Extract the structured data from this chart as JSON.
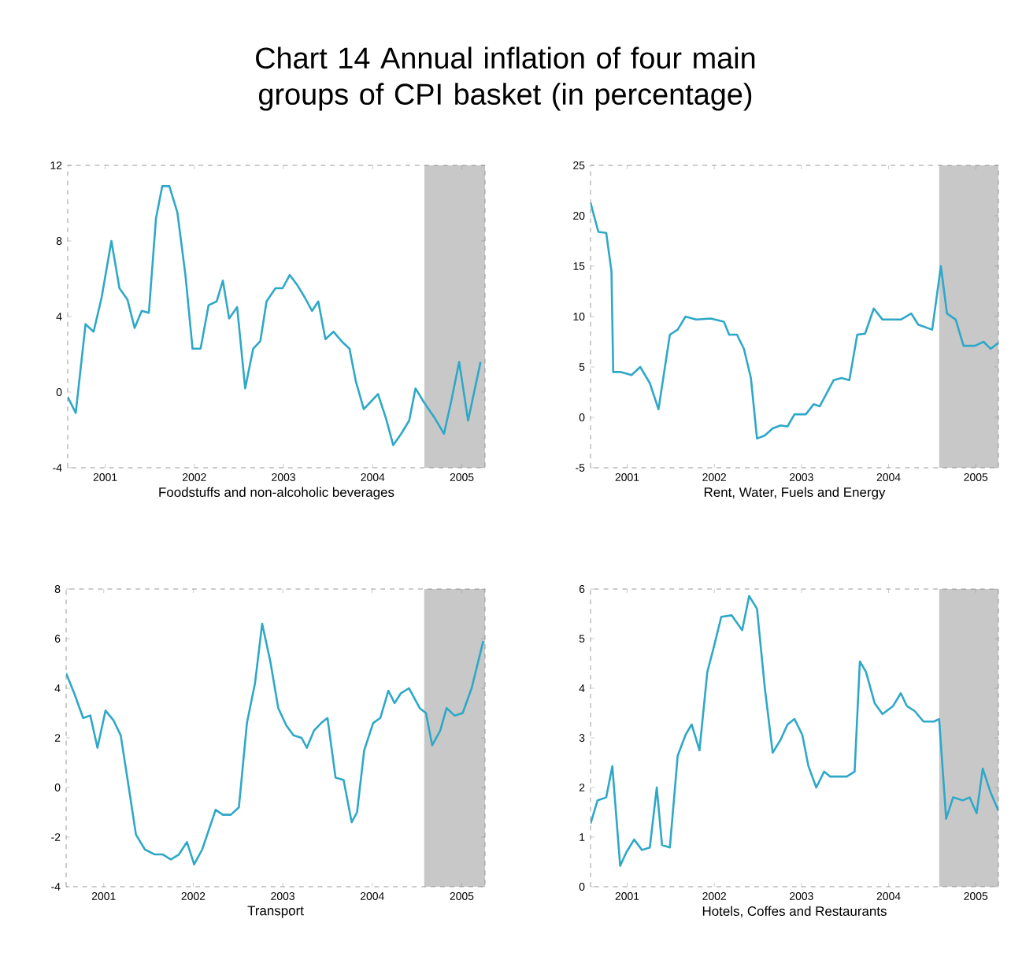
{
  "chart_data": [
    {
      "type": "line",
      "title": "Chart 14 Annual inflation of four main groups of CPI basket (in percentage)",
      "xlabel": "Foodstuffs and non-alcoholic beverages",
      "color": "#2ea8c8",
      "x": [
        2001.08,
        2001.17,
        2001.28,
        2001.37,
        2001.46,
        2001.57,
        2001.66,
        2001.75,
        2001.83,
        2001.91,
        2001.99,
        2002.07,
        2002.14,
        2002.22,
        2002.31,
        2002.4,
        2002.48,
        2002.57,
        2002.66,
        2002.75,
        2002.82,
        2002.89,
        2002.98,
        2003.07,
        2003.16,
        2003.24,
        2003.31,
        2003.41,
        2003.49,
        2003.57,
        2003.65,
        2003.74,
        2003.82,
        2003.89,
        2003.97,
        2004.06,
        2004.15,
        2004.24,
        2004.31,
        2004.4,
        2004.48,
        2004.56,
        2004.65,
        2004.73,
        2004.82,
        2004.91,
        2004.98,
        2005.07,
        2005.2,
        2005.3,
        2005.38,
        2005.47,
        2005.57,
        2005.71
      ],
      "values": [
        -0.25,
        -1.1,
        3.6,
        3.2,
        5.0,
        8.0,
        5.5,
        4.9,
        3.4,
        4.3,
        4.2,
        9.2,
        10.9,
        10.9,
        9.5,
        6.2,
        2.3,
        2.3,
        4.6,
        4.8,
        5.9,
        3.9,
        4.5,
        0.2,
        2.3,
        2.7,
        4.8,
        5.5,
        5.5,
        6.2,
        5.7,
        5.0,
        4.3,
        4.8,
        2.8,
        3.2,
        2.7,
        2.3,
        0.6,
        -0.9,
        -0.5,
        -0.1,
        -1.4,
        -2.8,
        -2.2,
        -1.5,
        0.2,
        -0.5,
        -1.4,
        -2.2,
        -0.5,
        1.6,
        -1.5,
        1.6
      ],
      "xlim": [
        2001.08,
        2005.76
      ],
      "ylim": [
        -4,
        12
      ],
      "xticks": [
        {
          "value": 2001.5,
          "label": "2001"
        },
        {
          "value": 2002.5,
          "label": "2002"
        },
        {
          "value": 2003.5,
          "label": "2003"
        },
        {
          "value": 2004.5,
          "label": "2004"
        },
        {
          "value": 2005.5,
          "label": "2005"
        }
      ],
      "yticks": [
        -4,
        0,
        4,
        8,
        12
      ],
      "bands": [
        {
          "axis": "x",
          "from": 2005.08,
          "to": 2005.76,
          "color": "#c8c8c8"
        }
      ]
    },
    {
      "type": "line",
      "xlabel": "Rent, Water, Fuels and Energy",
      "color": "#2ea8c8",
      "x": [
        2001.08,
        2001.12,
        2001.17,
        2001.26,
        2001.32,
        2001.34,
        2001.43,
        2001.55,
        2001.65,
        2001.76,
        2001.86,
        2001.99,
        2002.08,
        2002.17,
        2002.29,
        2002.46,
        2002.61,
        2002.67,
        2002.76,
        2002.84,
        2002.92,
        2002.99,
        2003.08,
        2003.17,
        2003.26,
        2003.34,
        2003.42,
        2003.55,
        2003.64,
        2003.71,
        2003.79,
        2003.87,
        2003.96,
        2004.05,
        2004.14,
        2004.23,
        2004.33,
        2004.43,
        2004.64,
        2004.76,
        2004.84,
        2005.0,
        2005.1,
        2005.17,
        2005.27,
        2005.36,
        2005.49,
        2005.59,
        2005.67,
        2005.76
      ],
      "values": [
        21.3,
        20,
        18.4,
        18.3,
        14.5,
        4.5,
        4.5,
        4.2,
        5.0,
        3.4,
        0.8,
        8.2,
        8.7,
        10,
        9.7,
        9.8,
        9.5,
        8.2,
        8.2,
        6.8,
        3.9,
        -2.1,
        -1.8,
        -1.1,
        -0.8,
        -0.9,
        0.3,
        0.3,
        1.3,
        1.1,
        2.4,
        3.7,
        3.9,
        3.7,
        8.2,
        8.3,
        10.8,
        9.7,
        9.7,
        10.3,
        9.2,
        8.7,
        15,
        10.3,
        9.7,
        7.1,
        7.1,
        7.5,
        6.8,
        7.4
      ],
      "xlim": [
        2001.08,
        2005.76
      ],
      "ylim": [
        -5,
        25
      ],
      "xticks": [
        {
          "value": 2001.5,
          "label": "2001"
        },
        {
          "value": 2002.5,
          "label": "2002"
        },
        {
          "value": 2003.5,
          "label": "2003"
        },
        {
          "value": 2004.5,
          "label": "2004"
        },
        {
          "value": 2005.5,
          "label": "2005"
        }
      ],
      "yticks": [
        -5,
        0,
        5,
        10,
        15,
        20,
        25
      ],
      "bands": [
        {
          "axis": "x",
          "from": 2005.08,
          "to": 2005.76,
          "color": "#c8c8c8"
        }
      ]
    },
    {
      "type": "line",
      "xlabel": "Transport",
      "color": "#2ea8c8",
      "x": [
        2001.08,
        2001.17,
        2001.27,
        2001.35,
        2001.43,
        2001.52,
        2001.61,
        2001.69,
        2001.78,
        2001.86,
        2001.96,
        2002.07,
        2002.16,
        2002.25,
        2002.34,
        2002.43,
        2002.51,
        2002.6,
        2002.75,
        2002.83,
        2002.92,
        2003.01,
        2003.1,
        2003.19,
        2003.27,
        2003.36,
        2003.45,
        2003.54,
        2003.62,
        2003.71,
        2003.77,
        2003.85,
        2003.93,
        2004.0,
        2004.09,
        2004.18,
        2004.27,
        2004.33,
        2004.41,
        2004.51,
        2004.59,
        2004.68,
        2004.75,
        2004.82,
        2004.91,
        2005.03,
        2005.1,
        2005.17,
        2005.26,
        2005.33,
        2005.42,
        2005.51,
        2005.61,
        2005.74
      ],
      "values": [
        4.6,
        3.8,
        2.8,
        2.9,
        1.6,
        3.1,
        2.7,
        2.1,
        0,
        -1.9,
        -2.5,
        -2.7,
        -2.7,
        -2.9,
        -2.7,
        -2.2,
        -3.1,
        -2.5,
        -0.9,
        -1.1,
        -1.1,
        -0.8,
        2.6,
        4.2,
        6.6,
        5.1,
        3.2,
        2.5,
        2.1,
        2.0,
        1.6,
        2.3,
        2.6,
        2.8,
        0.4,
        0.3,
        -1.4,
        -1.0,
        1.5,
        2.6,
        2.8,
        3.9,
        3.4,
        3.8,
        4.0,
        3.2,
        3.0,
        1.7,
        2.3,
        3.2,
        2.9,
        3.0,
        4.0,
        5.9
      ],
      "xlim": [
        2001.08,
        2005.76
      ],
      "ylim": [
        -4,
        8
      ],
      "xticks": [
        {
          "value": 2001.5,
          "label": "2001"
        },
        {
          "value": 2002.5,
          "label": "2002"
        },
        {
          "value": 2003.5,
          "label": "2003"
        },
        {
          "value": 2004.5,
          "label": "2004"
        },
        {
          "value": 2005.5,
          "label": "2005"
        }
      ],
      "yticks": [
        -4,
        -2,
        0,
        2,
        4,
        6,
        8
      ],
      "bands": [
        {
          "axis": "x",
          "from": 2005.08,
          "to": 2005.76,
          "color": "#c8c8c8"
        }
      ]
    },
    {
      "type": "line",
      "xlabel": "Hotels, Coffes and Restaurants",
      "color": "#2ea8c8",
      "x": [
        2001.08,
        2001.16,
        2001.26,
        2001.33,
        2001.42,
        2001.49,
        2001.58,
        2001.67,
        2001.76,
        2001.84,
        2001.9,
        2001.99,
        2002.08,
        2002.17,
        2002.24,
        2002.33,
        2002.42,
        2002.49,
        2002.58,
        2002.7,
        2002.82,
        2002.9,
        2002.99,
        2003.08,
        2003.17,
        2003.26,
        2003.34,
        2003.42,
        2003.51,
        2003.58,
        2003.67,
        2003.76,
        2003.83,
        2004.02,
        2004.11,
        2004.17,
        2004.24,
        2004.34,
        2004.43,
        2004.55,
        2004.64,
        2004.71,
        2004.8,
        2004.9,
        2005.02,
        2005.08,
        2005.16,
        2005.24,
        2005.35,
        2005.43,
        2005.51,
        2005.58,
        2005.67,
        2005.76
      ],
      "values": [
        1.27,
        1.74,
        1.8,
        2.43,
        0.42,
        0.69,
        0.95,
        0.74,
        0.79,
        2.0,
        0.84,
        0.79,
        2.64,
        3.06,
        3.27,
        2.75,
        4.33,
        4.8,
        5.44,
        5.47,
        5.17,
        5.86,
        5.6,
        4.0,
        2.7,
        2.96,
        3.27,
        3.38,
        3.06,
        2.43,
        2.0,
        2.32,
        2.22,
        2.22,
        2.32,
        4.54,
        4.33,
        3.7,
        3.48,
        3.64,
        3.9,
        3.64,
        3.54,
        3.33,
        3.33,
        3.38,
        1.37,
        1.8,
        1.74,
        1.8,
        1.48,
        2.38,
        1.9,
        1.53
      ],
      "xlim": [
        2001.08,
        2005.76
      ],
      "ylim": [
        0,
        6
      ],
      "xticks": [
        {
          "value": 2001.5,
          "label": "2001"
        },
        {
          "value": 2002.5,
          "label": "2002"
        },
        {
          "value": 2003.5,
          "label": "2003"
        },
        {
          "value": 2004.5,
          "label": "2004"
        },
        {
          "value": 2005.5,
          "label": "2005"
        }
      ],
      "yticks": [
        0,
        1,
        2,
        3,
        4,
        5,
        6
      ],
      "bands": [
        {
          "axis": "x",
          "from": 2005.08,
          "to": 2005.76,
          "color": "#c8c8c8"
        }
      ]
    }
  ]
}
